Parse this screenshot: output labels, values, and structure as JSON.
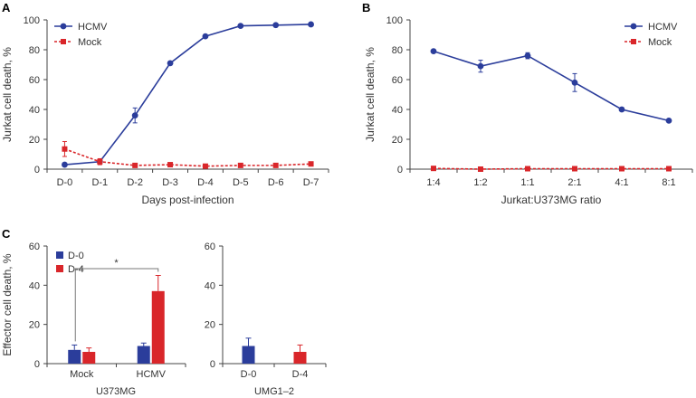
{
  "figure": {
    "panels": [
      "A",
      "B",
      "C"
    ]
  },
  "chart_data": [
    {
      "panel": "A",
      "type": "line",
      "title": "",
      "xlabel": "Days post-infection",
      "ylabel": "Jurkat cell death, %",
      "categories": [
        "D-0",
        "D-1",
        "D-2",
        "D-3",
        "D-4",
        "D-5",
        "D-6",
        "D-7"
      ],
      "ylim": [
        0,
        100
      ],
      "yticks": [
        0,
        20,
        40,
        60,
        80,
        100
      ],
      "legend_position": "top-left",
      "series": [
        {
          "name": "HCMV",
          "color": "#2b3d9b",
          "style": "solid",
          "marker": "circle",
          "values": [
            3,
            5,
            36,
            71,
            89,
            96,
            96.5,
            97
          ],
          "errors": [
            0.8,
            1,
            5,
            1,
            0.8,
            0.6,
            0.5,
            0.5
          ]
        },
        {
          "name": "Mock",
          "color": "#d9262a",
          "style": "dashed",
          "marker": "square",
          "values": [
            13.5,
            5,
            2.5,
            3,
            2,
            2.5,
            2.5,
            3.5
          ],
          "errors": [
            5,
            2,
            0.8,
            0.8,
            0.5,
            0.5,
            0.5,
            0.6
          ]
        }
      ]
    },
    {
      "panel": "B",
      "type": "line",
      "title": "",
      "xlabel": "Jurkat:U373MG ratio",
      "ylabel": "Jurkat cell death, %",
      "categories": [
        "1:4",
        "1:2",
        "1:1",
        "2:1",
        "4:1",
        "8:1"
      ],
      "ylim": [
        0,
        100
      ],
      "yticks": [
        0,
        20,
        40,
        60,
        80,
        100
      ],
      "legend_position": "top-right",
      "series": [
        {
          "name": "HCMV",
          "color": "#2b3d9b",
          "style": "solid",
          "marker": "circle",
          "values": [
            79,
            69,
            76,
            58,
            40,
            32.5
          ],
          "errors": [
            0.8,
            4,
            2,
            6,
            0.8,
            0.5
          ]
        },
        {
          "name": "Mock",
          "color": "#d9262a",
          "style": "dashed",
          "marker": "square",
          "values": [
            0.5,
            0,
            0.3,
            0.3,
            0.3,
            0.3
          ],
          "errors": [
            0,
            0,
            0,
            0,
            0,
            0
          ]
        }
      ]
    },
    {
      "panel": "C",
      "type": "bar",
      "title": "",
      "ylabel": "Effector cell death, %",
      "ylim": [
        0,
        60
      ],
      "yticks": [
        0,
        20,
        40,
        60
      ],
      "legend_position": "top-left",
      "legend": [
        {
          "name": "D-0",
          "color": "#2b3d9b"
        },
        {
          "name": "D-4",
          "color": "#d9262a"
        }
      ],
      "subplots": [
        {
          "group_label": "U373MG",
          "categories": [
            "Mock",
            "HCMV"
          ],
          "series": [
            {
              "name": "D-0",
              "values": [
                7,
                9
              ],
              "errors": [
                2.5,
                1.5
              ]
            },
            {
              "name": "D-4",
              "values": [
                6,
                37
              ],
              "errors": [
                2,
                8
              ]
            }
          ],
          "annotation": "*"
        },
        {
          "group_label": "UMG1–2",
          "categories": [
            "D-0",
            "D-4"
          ],
          "series": [
            {
              "name": "D-0",
              "values": [
                9,
                null
              ],
              "errors": [
                4,
                null
              ]
            },
            {
              "name": "D-4",
              "values": [
                null,
                6
              ],
              "errors": [
                null,
                3.5
              ]
            }
          ]
        }
      ]
    }
  ]
}
